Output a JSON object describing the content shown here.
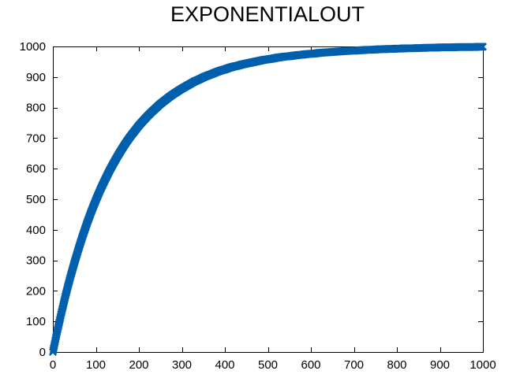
{
  "chart_data": {
    "type": "scatter",
    "title": "EXPONENTIALOUT",
    "xlabel": "",
    "ylabel": "",
    "xlim": [
      0,
      1000
    ],
    "ylim": [
      0,
      1000
    ],
    "x_ticks": [
      "0",
      "100",
      "200",
      "300",
      "400",
      "500",
      "600",
      "700",
      "800",
      "900",
      "1000"
    ],
    "y_ticks": [
      "0",
      "100",
      "200",
      "300",
      "400",
      "500",
      "600",
      "700",
      "800",
      "900",
      "1000"
    ],
    "grid": false,
    "legend": "none",
    "marker": "x",
    "color": "#0060ad",
    "series": [
      {
        "x": [
          0,
          10,
          20,
          30,
          40,
          50,
          60,
          70,
          80,
          90,
          100,
          110,
          120,
          130,
          140,
          150,
          160,
          170,
          180,
          190,
          200,
          210,
          220,
          230,
          240,
          250,
          260,
          270,
          280,
          290,
          300,
          310,
          320,
          330,
          340,
          350,
          360,
          370,
          380,
          390,
          400,
          410,
          420,
          430,
          440,
          450,
          460,
          470,
          480,
          490,
          500,
          510,
          520,
          530,
          540,
          550,
          560,
          570,
          580,
          590,
          600,
          610,
          620,
          630,
          640,
          650,
          660,
          670,
          680,
          690,
          700,
          710,
          720,
          730,
          740,
          750,
          760,
          770,
          780,
          790,
          800,
          810,
          820,
          830,
          840,
          850,
          860,
          870,
          880,
          890,
          900,
          910,
          920,
          930,
          940,
          950,
          960,
          970,
          980,
          990,
          1000
        ],
        "y": [
          0,
          67,
          129,
          188,
          242,
          292,
          339,
          383,
          424,
          462,
          497,
          530,
          560,
          589,
          615,
          640,
          663,
          685,
          705,
          723,
          741,
          757,
          772,
          786,
          799,
          812,
          823,
          834,
          844,
          853,
          862,
          870,
          878,
          886,
          892,
          899,
          905,
          910,
          916,
          921,
          925,
          930,
          934,
          937,
          941,
          944,
          947,
          950,
          953,
          956,
          958,
          960,
          963,
          965,
          967,
          968,
          970,
          972,
          973,
          975,
          976,
          977,
          979,
          980,
          981,
          982,
          983,
          984,
          985,
          986,
          986,
          987,
          988,
          989,
          989,
          990,
          991,
          991,
          992,
          992,
          993,
          993,
          994,
          994,
          994,
          995,
          995,
          996,
          996,
          996,
          997,
          997,
          997,
          997,
          998,
          998,
          998,
          998,
          998,
          999,
          999
        ]
      }
    ]
  }
}
